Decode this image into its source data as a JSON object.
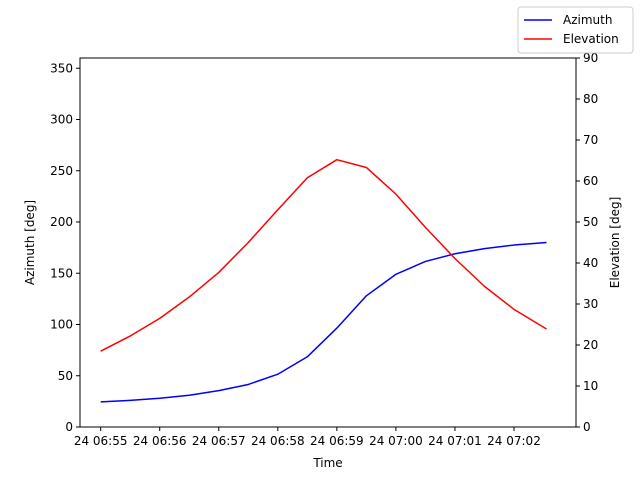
{
  "chart_data": {
    "type": "line",
    "xlabel": "Time",
    "ylabel_left": "Azimuth [deg]",
    "ylabel_right": "Elevation [deg]",
    "x_tick_labels": [
      "24 06:55",
      "24 06:56",
      "24 06:57",
      "24 06:58",
      "24 06:59",
      "24 07:00",
      "24 07:01",
      "24 07:02"
    ],
    "x_tick_values": [
      0,
      1,
      2,
      3,
      4,
      5,
      6,
      7
    ],
    "xlim": [
      -0.35,
      8.05
    ],
    "ylim_left": [
      0,
      360
    ],
    "ylim_right": [
      0,
      90
    ],
    "y_ticks_left": [
      "0",
      "50",
      "100",
      "150",
      "200",
      "250",
      "300",
      "350"
    ],
    "y_ticks_right": [
      "0",
      "10",
      "20",
      "30",
      "40",
      "50",
      "60",
      "70",
      "80",
      "90"
    ],
    "x": [
      0,
      0.5,
      1,
      1.5,
      2,
      2.5,
      3,
      3.5,
      4,
      4.5,
      5,
      5.5,
      6,
      6.5,
      7,
      7.55
    ],
    "series": [
      {
        "name": "Azimuth",
        "axis": "left",
        "color": "#0000ff",
        "values": [
          24.5,
          26,
          28,
          31,
          35.5,
          41.5,
          51.5,
          68.5,
          96.5,
          128,
          149,
          161.5,
          169,
          174,
          177.5,
          180
        ]
      },
      {
        "name": "Elevation",
        "axis": "right",
        "color": "#ff0000",
        "values": [
          18.5,
          22.2,
          26.5,
          31.7,
          37.7,
          45,
          53,
          60.8,
          65.2,
          63.3,
          56.8,
          48.7,
          41.1,
          34.3,
          28.7,
          23.9
        ]
      }
    ],
    "legend": {
      "placement": "top-right",
      "entries": [
        {
          "name": "Azimuth",
          "color": "#0000ff"
        },
        {
          "name": "Elevation",
          "color": "#ff0000"
        }
      ]
    },
    "grid": false
  }
}
